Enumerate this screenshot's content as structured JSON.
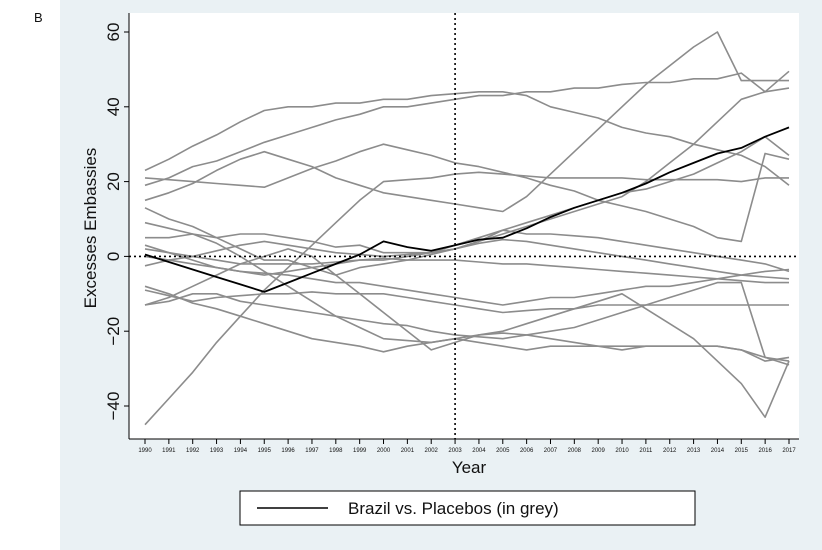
{
  "panel_label": "B",
  "chart_data": {
    "type": "line",
    "title": "",
    "xlabel": "Year",
    "ylabel": "Excesses Embassies",
    "xlim": [
      1990,
      2017
    ],
    "ylim": [
      -45,
      62
    ],
    "x": [
      1990,
      1991,
      1992,
      1993,
      1994,
      1995,
      1996,
      1997,
      1998,
      1999,
      2000,
      2001,
      2002,
      2003,
      2004,
      2005,
      2006,
      2007,
      2008,
      2009,
      2010,
      2011,
      2012,
      2013,
      2014,
      2015,
      2016,
      2017
    ],
    "x_ticks": [
      "1990",
      "1991",
      "1992",
      "1993",
      "1994",
      "1995",
      "1996",
      "1997",
      "1998",
      "1999",
      "2000",
      "2001",
      "2002",
      "2003",
      "2004",
      "2005",
      "2006",
      "2007",
      "2008",
      "2009",
      "2010",
      "2011",
      "2012",
      "2013",
      "2014",
      "2015",
      "2016",
      "2017"
    ],
    "y_ticks": [
      60,
      40,
      20,
      0,
      -20,
      -40
    ],
    "y_tick_labels": [
      "60",
      "40",
      "20",
      "0",
      "−20",
      "−40"
    ],
    "reference_lines": {
      "vertical_x": 2003,
      "horizontal_y": 0,
      "style": "dotted"
    },
    "legend": {
      "label": "Brazil vs. Placebos (in grey)",
      "position": "bottom"
    },
    "background": "#eaf1f4",
    "plot_background": "#ffffff",
    "main_color": "#000000",
    "placebo_color": "#8c8c8c",
    "main_series": {
      "values": [
        0.5,
        -1.5,
        -3.5,
        -5.5,
        -7.5,
        -9.5,
        -7,
        -4.5,
        -2,
        0.5,
        4,
        2.5,
        1.5,
        3,
        4.5,
        5,
        7.5,
        10.5,
        13,
        15,
        17,
        19.5,
        22.5,
        25,
        27.5,
        29,
        32,
        34.5
      ]
    },
    "placebo_series": [
      {
        "values": [
          23,
          26,
          29.5,
          32.5,
          36,
          39,
          40,
          40,
          41,
          41,
          42,
          42,
          43,
          43.5,
          44,
          44,
          43,
          40,
          38.5,
          37,
          34.5,
          33,
          32,
          30,
          28.5,
          27,
          24,
          19
        ]
      },
      {
        "values": [
          19,
          21,
          24,
          25.5,
          28,
          30.5,
          32.5,
          34.5,
          36.5,
          38,
          40,
          40,
          41,
          42,
          43,
          43,
          44,
          44,
          45,
          45,
          46,
          46.5,
          46.5,
          47.5,
          47.5,
          49,
          44,
          45
        ]
      },
      {
        "values": [
          21,
          20.5,
          20,
          19.5,
          19,
          18.5,
          21,
          23.5,
          25.5,
          28,
          30,
          28.5,
          27,
          25,
          24,
          22.5,
          21,
          19,
          17.5,
          15,
          13.5,
          12,
          10,
          8,
          5,
          4,
          27.5,
          26
        ]
      },
      {
        "values": [
          15,
          17,
          19.5,
          23,
          26,
          28,
          26,
          24,
          21,
          19,
          17,
          16,
          15,
          14,
          13,
          12,
          16,
          22,
          28,
          34,
          40,
          46,
          51,
          56,
          60,
          47,
          47,
          47
        ]
      },
      {
        "values": [
          -45,
          -38,
          -31,
          -23,
          -16,
          -9,
          -3,
          3,
          9,
          15,
          20,
          20.5,
          21,
          22,
          22.5,
          22,
          21.5,
          21,
          21,
          21,
          21,
          20.5,
          20.5,
          20.5,
          20.5,
          20,
          21,
          21
        ]
      },
      {
        "values": [
          13,
          10,
          8,
          5,
          2,
          -1,
          -1,
          -3,
          -5,
          -3,
          -2,
          -1,
          0.5,
          2,
          4,
          6,
          8,
          10,
          12,
          14,
          16,
          20,
          25,
          30,
          36,
          42,
          44,
          49.5
        ]
      },
      {
        "values": [
          3,
          1,
          -1,
          -3,
          -4,
          -5,
          -4,
          -3,
          -2,
          -1,
          -1,
          0,
          1,
          3,
          5,
          7,
          9,
          11,
          13,
          15,
          17,
          18,
          20,
          22,
          25,
          28,
          32,
          27
        ]
      },
      {
        "values": [
          -2.5,
          -1,
          0,
          1.5,
          3,
          4,
          3,
          2,
          1,
          0.5,
          0,
          0.5,
          1,
          2,
          3.5,
          4.5,
          4,
          3,
          2,
          1,
          0,
          -1,
          -2,
          -3,
          -4,
          -5,
          -5.5,
          -6
        ]
      },
      {
        "values": [
          9,
          7.5,
          6,
          5,
          6,
          6,
          5,
          4,
          2.5,
          3,
          1,
          1,
          1,
          2,
          4,
          7,
          6,
          6,
          5.5,
          5,
          4,
          3,
          2,
          1,
          0,
          -1,
          -2,
          -4
        ]
      },
      {
        "values": [
          5,
          5,
          6,
          3.5,
          0,
          -4,
          -8,
          -12,
          -16,
          -19,
          -22,
          -22.5,
          -23,
          -22,
          -21,
          -20.5,
          -21,
          -22,
          -23,
          -24,
          -25,
          -24,
          -24,
          -24,
          -24,
          -25,
          -27,
          -29
        ]
      },
      {
        "values": [
          -13,
          -12,
          -10,
          -10,
          -12,
          -13,
          -14,
          -15,
          -16,
          -17,
          -18,
          -18.5,
          -20,
          -21,
          -21.5,
          -22,
          -21,
          -20,
          -19,
          -17,
          -15,
          -13,
          -11,
          -9,
          -7,
          -7,
          -27,
          -28
        ]
      },
      {
        "values": [
          -9,
          -10.5,
          -12,
          -11,
          -10.5,
          -10,
          -10,
          -9.5,
          -10,
          -10,
          -10,
          -11,
          -12,
          -13,
          -14,
          -15,
          -14.5,
          -14,
          -14,
          -13,
          -13,
          -13,
          -13,
          -13,
          -13,
          -13,
          -13,
          -13
        ]
      },
      {
        "values": [
          -8,
          -10,
          -12.5,
          -14,
          -16,
          -18,
          -20,
          -22,
          -23,
          -24,
          -25.5,
          -24,
          -23,
          -22,
          -23,
          -24,
          -25,
          -24,
          -24,
          -24,
          -24,
          -24,
          -24,
          -24,
          -24,
          -25,
          -28,
          -27
        ]
      },
      {
        "values": [
          0,
          -1,
          -2,
          -3,
          -4,
          -4.5,
          -5,
          -6,
          -7,
          -7,
          -8,
          -9,
          -10,
          -11,
          -12,
          -13,
          -12,
          -11,
          -11,
          -10,
          -9,
          -8,
          -8,
          -7,
          -6,
          -5,
          -4,
          -3.5
        ]
      },
      {
        "values": [
          -13,
          -11,
          -8,
          -5,
          -2,
          0,
          2,
          0,
          -5,
          -10,
          -15,
          -20,
          -25,
          -23,
          -21,
          -20,
          -18,
          -16,
          -14,
          -12,
          -10,
          -14,
          -18,
          -22,
          -28,
          -34,
          -43,
          -28
        ]
      },
      {
        "values": [
          2,
          1,
          0,
          -1,
          -2,
          -2,
          -2,
          -2,
          -1.5,
          -1,
          -0.5,
          -1,
          -1,
          -1,
          -1.5,
          -2,
          -2,
          -2.5,
          -3,
          -3.5,
          -4,
          -4.5,
          -5,
          -5.5,
          -6,
          -6.5,
          -7,
          -7
        ]
      }
    ]
  }
}
